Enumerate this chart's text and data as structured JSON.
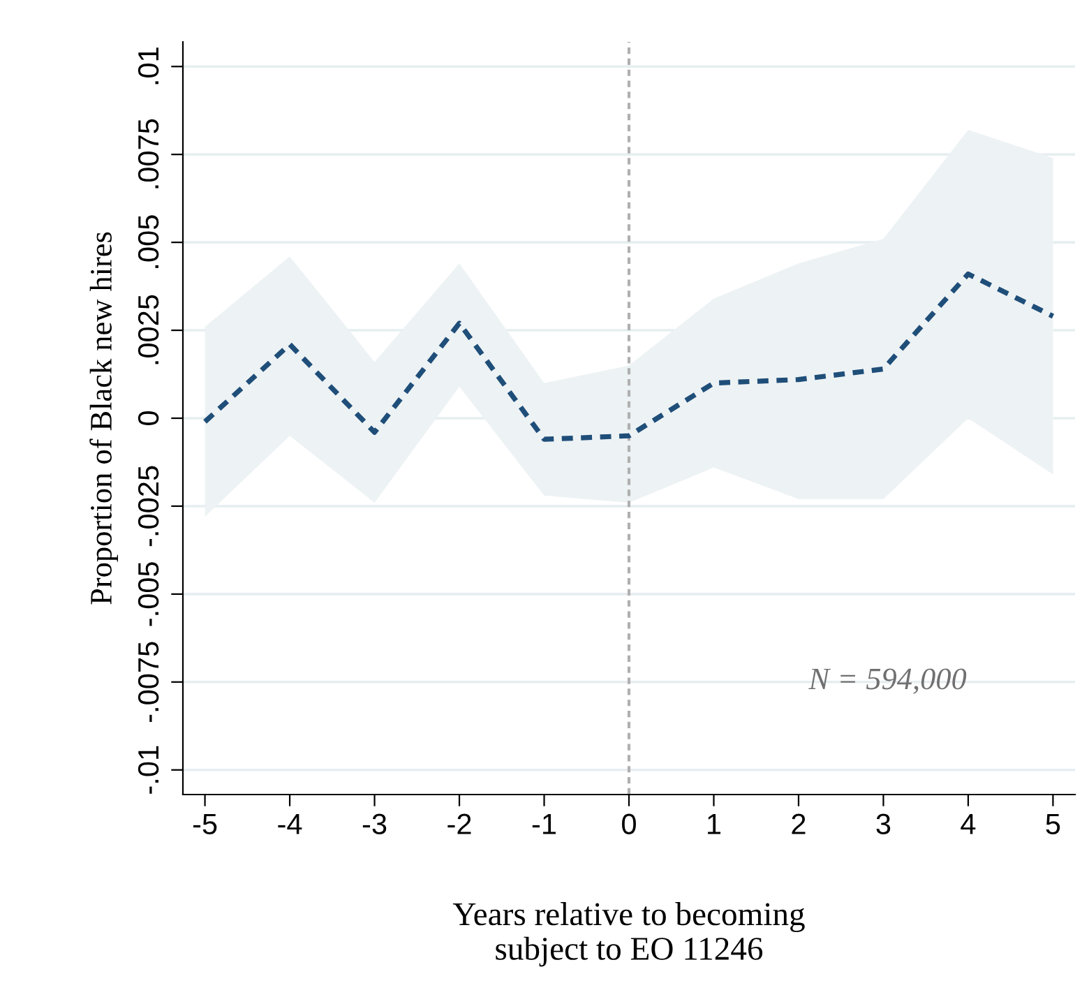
{
  "chart_data": {
    "type": "line",
    "xlabel": "Years relative to becoming\nsubject to EO 11246",
    "ylabel": "Proportion of Black new hires",
    "x": [
      -5,
      -4,
      -3,
      -2,
      -1,
      0,
      1,
      2,
      3,
      4,
      5
    ],
    "series": [
      {
        "color": "#1f4e79",
        "line_style": "dashed",
        "values": [
          -0.0001,
          0.0021,
          -0.0004,
          0.0027,
          -0.0006,
          -0.0005,
          0.001,
          0.0011,
          0.0014,
          0.0041,
          0.0029
        ],
        "lower": [
          -0.0028,
          -0.0005,
          -0.0024,
          0.0009,
          -0.0022,
          -0.0024,
          -0.0014,
          -0.0023,
          -0.0023,
          0.0,
          -0.0016
        ],
        "upper": [
          0.0026,
          0.0046,
          0.0016,
          0.0044,
          0.001,
          0.0015,
          0.0034,
          0.0044,
          0.0051,
          0.0082,
          0.0074
        ]
      }
    ],
    "xlim": [
      -5.26,
      5.26
    ],
    "xticks": [
      -5,
      -4,
      -3,
      -2,
      -1,
      0,
      1,
      2,
      3,
      4,
      5
    ],
    "ylim": [
      -0.0107,
      0.0107
    ],
    "yticks": [
      {
        "value": -0.01,
        "label": "-.01"
      },
      {
        "value": -0.0075,
        "label": "-.0075"
      },
      {
        "value": -0.005,
        "label": "-.005"
      },
      {
        "value": -0.0025,
        "label": "-.0025"
      },
      {
        "value": 0,
        "label": "0"
      },
      {
        "value": 0.0025,
        "label": ".0025"
      },
      {
        "value": 0.005,
        "label": ".005"
      },
      {
        "value": 0.0075,
        "label": ".0075"
      },
      {
        "value": 0.01,
        "label": ".01"
      }
    ],
    "grid": "y",
    "ref_lines": [
      {
        "axis": "x",
        "value": 0,
        "color": "#b0b0b0",
        "line_style": "dashed"
      }
    ],
    "annotations": [
      "N = 594,000"
    ]
  }
}
